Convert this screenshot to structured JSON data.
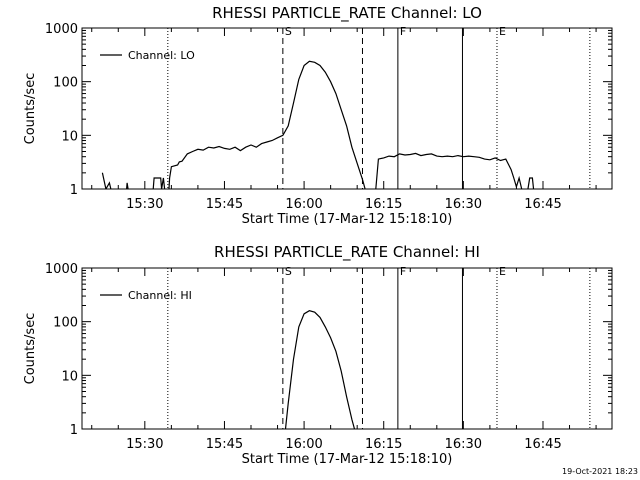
{
  "chart_data": [
    {
      "type": "line",
      "title": "RHESSI PARTICLE_RATE Channel: LO",
      "xlabel": "Start Time (17-Mar-12 15:18:10)",
      "ylabel": "Counts/sec",
      "y_scale": "log",
      "ylim": [
        1,
        1000
      ],
      "y_ticks": [
        {
          "value": 1,
          "label": "1"
        },
        {
          "value": 10,
          "label": "10"
        },
        {
          "value": 100,
          "label": "100"
        },
        {
          "value": 1000,
          "label": "1000"
        }
      ],
      "xlim": [
        "15:18:10",
        "16:58:00"
      ],
      "x_ticks": [
        "15:30",
        "15:45",
        "16:00",
        "16:15",
        "16:30",
        "16:45"
      ],
      "legend": {
        "position": "top-left",
        "entries": [
          "Channel: LO"
        ]
      },
      "markers": [
        {
          "time": "15:34:20",
          "style": "dotted",
          "label": ""
        },
        {
          "time": "15:56:00",
          "style": "dashed",
          "label": "S"
        },
        {
          "time": "16:11:00",
          "style": "dashed",
          "label": ""
        },
        {
          "time": "16:17:40",
          "style": "solid",
          "label": "F"
        },
        {
          "time": "16:29:50",
          "style": "solid",
          "label": ""
        },
        {
          "time": "16:36:20",
          "style": "dotted",
          "label": "E"
        },
        {
          "time": "16:53:50",
          "style": "dotted",
          "label": ""
        }
      ],
      "series": [
        {
          "name": "Channel: LO",
          "points": [
            [
              "15:22:00",
              2.0
            ],
            [
              "15:22:40",
              1.0
            ],
            [
              "15:23:20",
              1.3
            ],
            [
              "15:23:50",
              0.8
            ],
            [
              "15:26:30",
              0.8
            ],
            [
              "15:26:40",
              1.3
            ],
            [
              "15:27:00",
              0.8
            ],
            [
              "15:31:30",
              0.8
            ],
            [
              "15:31:45",
              1.6
            ],
            [
              "15:33:00",
              1.6
            ],
            [
              "15:33:10",
              1.0
            ],
            [
              "15:33:30",
              1.6
            ],
            [
              "15:33:50",
              0.8
            ],
            [
              "15:34:30",
              0.8
            ],
            [
              "15:34:40",
              1.6
            ],
            [
              "15:35:00",
              2.6
            ],
            [
              "15:36:10",
              2.8
            ],
            [
              "15:36:30",
              3.2
            ],
            [
              "15:37:00",
              3.3
            ],
            [
              "15:38:00",
              4.5
            ],
            [
              "15:39:00",
              5.0
            ],
            [
              "15:40:00",
              5.5
            ],
            [
              "15:41:00",
              5.3
            ],
            [
              "15:42:00",
              6.0
            ],
            [
              "15:43:00",
              5.8
            ],
            [
              "15:44:00",
              6.2
            ],
            [
              "15:45:00",
              5.7
            ],
            [
              "15:46:00",
              5.5
            ],
            [
              "15:47:00",
              6.0
            ],
            [
              "15:48:00",
              5.2
            ],
            [
              "15:49:00",
              6.0
            ],
            [
              "15:50:00",
              6.6
            ],
            [
              "15:51:00",
              6.0
            ],
            [
              "15:52:00",
              7.0
            ],
            [
              "15:53:00",
              7.5
            ],
            [
              "15:54:00",
              8.0
            ],
            [
              "15:55:00",
              9.0
            ],
            [
              "15:56:00",
              10.0
            ],
            [
              "15:57:00",
              15
            ],
            [
              "15:58:00",
              40
            ],
            [
              "15:59:00",
              110
            ],
            [
              "16:00:00",
              200
            ],
            [
              "16:01:00",
              240
            ],
            [
              "16:02:00",
              230
            ],
            [
              "16:03:00",
              200
            ],
            [
              "16:04:00",
              150
            ],
            [
              "16:05:00",
              100
            ],
            [
              "16:06:00",
              60
            ],
            [
              "16:07:00",
              30
            ],
            [
              "16:08:00",
              15
            ],
            [
              "16:09:00",
              6
            ],
            [
              "16:10:00",
              3
            ],
            [
              "16:11:00",
              1.5
            ],
            [
              "16:11:30",
              1.0
            ],
            [
              "16:12:00",
              0.8
            ],
            [
              "16:13:30",
              1.0
            ],
            [
              "16:14:00",
              3.6
            ],
            [
              "16:15:00",
              3.8
            ],
            [
              "16:16:00",
              4.1
            ],
            [
              "16:17:00",
              4.0
            ],
            [
              "16:18:00",
              4.5
            ],
            [
              "16:19:00",
              4.3
            ],
            [
              "16:20:00",
              4.4
            ],
            [
              "16:21:00",
              4.6
            ],
            [
              "16:22:00",
              4.2
            ],
            [
              "16:23:00",
              4.4
            ],
            [
              "16:24:00",
              4.5
            ],
            [
              "16:25:00",
              4.1
            ],
            [
              "16:26:00",
              4.0
            ],
            [
              "16:27:00",
              4.1
            ],
            [
              "16:28:00",
              4.0
            ],
            [
              "16:29:00",
              4.2
            ],
            [
              "16:30:00",
              4.0
            ],
            [
              "16:31:00",
              4.1
            ],
            [
              "16:32:00",
              4.0
            ],
            [
              "16:33:00",
              3.9
            ],
            [
              "16:34:00",
              3.6
            ],
            [
              "16:35:00",
              3.5
            ],
            [
              "16:36:00",
              3.8
            ],
            [
              "16:37:00",
              3.4
            ],
            [
              "16:38:00",
              3.6
            ],
            [
              "16:39:00",
              2.3
            ],
            [
              "16:39:30",
              1.6
            ],
            [
              "16:40:00",
              1.1
            ],
            [
              "16:40:30",
              1.6
            ],
            [
              "16:41:00",
              1.0
            ],
            [
              "16:41:20",
              0.8
            ],
            [
              "16:42:00",
              0.8
            ],
            [
              "16:42:30",
              1.6
            ],
            [
              "16:43:00",
              1.6
            ],
            [
              "16:43:20",
              0.8
            ]
          ]
        }
      ]
    },
    {
      "type": "line",
      "title": "RHESSI PARTICLE_RATE Channel: HI",
      "xlabel": "Start Time (17-Mar-12 15:18:10)",
      "ylabel": "Counts/sec",
      "y_scale": "log",
      "ylim": [
        1,
        1000
      ],
      "y_ticks": [
        {
          "value": 1,
          "label": "1"
        },
        {
          "value": 10,
          "label": "10"
        },
        {
          "value": 100,
          "label": "100"
        },
        {
          "value": 1000,
          "label": "1000"
        }
      ],
      "xlim": [
        "15:18:10",
        "16:58:00"
      ],
      "x_ticks": [
        "15:30",
        "15:45",
        "16:00",
        "16:15",
        "16:30",
        "16:45"
      ],
      "legend": {
        "position": "top-left",
        "entries": [
          "Channel: HI"
        ]
      },
      "markers": [
        {
          "time": "15:34:20",
          "style": "dotted",
          "label": ""
        },
        {
          "time": "15:56:00",
          "style": "dashed",
          "label": "S"
        },
        {
          "time": "16:11:00",
          "style": "dashed",
          "label": ""
        },
        {
          "time": "16:17:40",
          "style": "solid",
          "label": "F"
        },
        {
          "time": "16:29:50",
          "style": "solid",
          "label": ""
        },
        {
          "time": "16:36:20",
          "style": "dotted",
          "label": "E"
        },
        {
          "time": "16:53:50",
          "style": "dotted",
          "label": ""
        }
      ],
      "series": [
        {
          "name": "Channel: HI",
          "points": [
            [
              "15:56:30",
              1.0
            ],
            [
              "15:57:00",
              3
            ],
            [
              "15:58:00",
              20
            ],
            [
              "15:59:00",
              80
            ],
            [
              "16:00:00",
              140
            ],
            [
              "16:01:00",
              160
            ],
            [
              "16:02:00",
              150
            ],
            [
              "16:03:00",
              120
            ],
            [
              "16:04:00",
              80
            ],
            [
              "16:05:00",
              50
            ],
            [
              "16:06:00",
              28
            ],
            [
              "16:07:00",
              12
            ],
            [
              "16:08:00",
              4
            ],
            [
              "16:09:00",
              1.5
            ],
            [
              "16:09:30",
              1.0
            ]
          ]
        }
      ]
    }
  ],
  "footer": {
    "timestamp": "19-Oct-2021 18:23"
  }
}
